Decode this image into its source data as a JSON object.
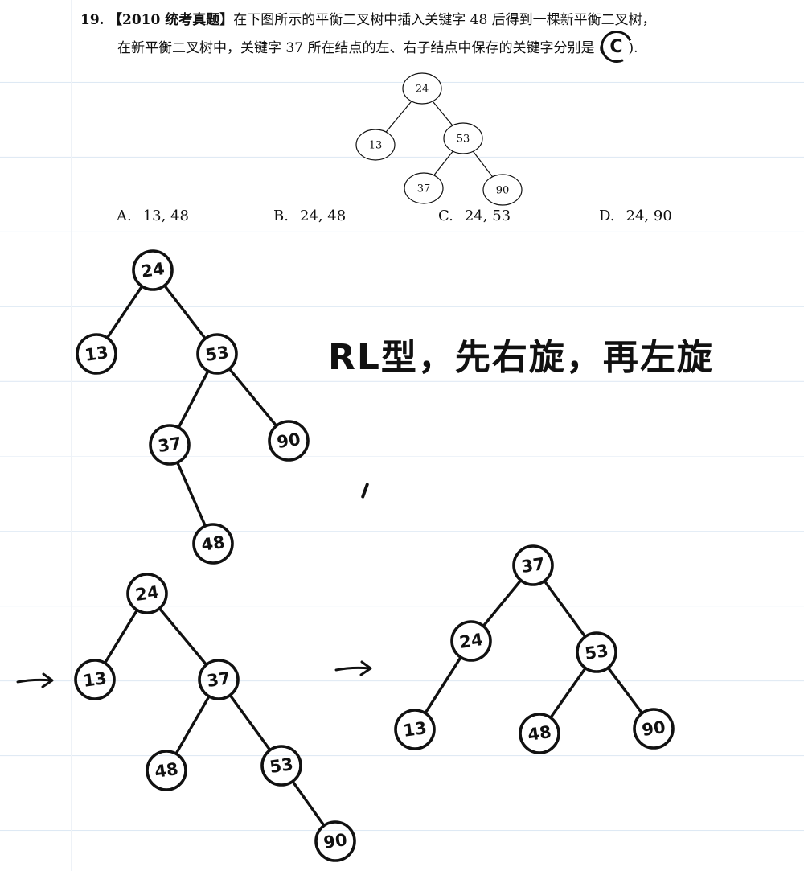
{
  "question": {
    "number": "19.",
    "tag": "【2010 统考真题】",
    "text_line1": "在下图所示的平衡二叉树中插入关键字 48 后得到一棵新平衡二叉树，",
    "text_line2": "在新平衡二叉树中，关键字 37 所在结点的左、右子结点中保存的关键字分别是 (",
    "text_line2_end": ").",
    "handwritten_answer": "C"
  },
  "printed_tree": {
    "nodes": [
      {
        "id": "24",
        "label": "24"
      },
      {
        "id": "13",
        "label": "13"
      },
      {
        "id": "53",
        "label": "53"
      },
      {
        "id": "37",
        "label": "37"
      },
      {
        "id": "90",
        "label": "90"
      }
    ],
    "edges": [
      [
        "24",
        "13"
      ],
      [
        "24",
        "53"
      ],
      [
        "53",
        "37"
      ],
      [
        "53",
        "90"
      ]
    ]
  },
  "options": [
    {
      "letter": "A.",
      "value": "13, 48"
    },
    {
      "letter": "B.",
      "value": "24, 48"
    },
    {
      "letter": "C.",
      "value": "24, 53"
    },
    {
      "letter": "D.",
      "value": "24, 90"
    }
  ],
  "handwritten_note": "RL型，先右旋，再左旋",
  "arrow_glyph": "→",
  "hand_trees": [
    {
      "name": "after-insert",
      "nodes": [
        {
          "id": "24",
          "label": "24"
        },
        {
          "id": "13",
          "label": "13"
        },
        {
          "id": "53",
          "label": "53"
        },
        {
          "id": "37",
          "label": "37"
        },
        {
          "id": "90",
          "label": "90"
        },
        {
          "id": "48",
          "label": "48"
        }
      ],
      "edges": [
        [
          "24",
          "13"
        ],
        [
          "24",
          "53"
        ],
        [
          "53",
          "37"
        ],
        [
          "53",
          "90"
        ],
        [
          "37",
          "48"
        ]
      ]
    },
    {
      "name": "after-right-rotation",
      "nodes": [
        {
          "id": "24",
          "label": "24"
        },
        {
          "id": "13",
          "label": "13"
        },
        {
          "id": "37",
          "label": "37"
        },
        {
          "id": "48",
          "label": "48"
        },
        {
          "id": "53",
          "label": "53"
        },
        {
          "id": "90",
          "label": "90"
        }
      ],
      "edges": [
        [
          "24",
          "13"
        ],
        [
          "24",
          "37"
        ],
        [
          "37",
          "48"
        ],
        [
          "37",
          "53"
        ],
        [
          "53",
          "90"
        ]
      ]
    },
    {
      "name": "after-left-rotation",
      "nodes": [
        {
          "id": "37",
          "label": "37"
        },
        {
          "id": "24",
          "label": "24"
        },
        {
          "id": "53",
          "label": "53"
        },
        {
          "id": "13",
          "label": "13"
        },
        {
          "id": "48",
          "label": "48"
        },
        {
          "id": "90",
          "label": "90"
        }
      ],
      "edges": [
        [
          "37",
          "24"
        ],
        [
          "37",
          "53"
        ],
        [
          "24",
          "13"
        ],
        [
          "53",
          "48"
        ],
        [
          "53",
          "90"
        ]
      ]
    }
  ]
}
